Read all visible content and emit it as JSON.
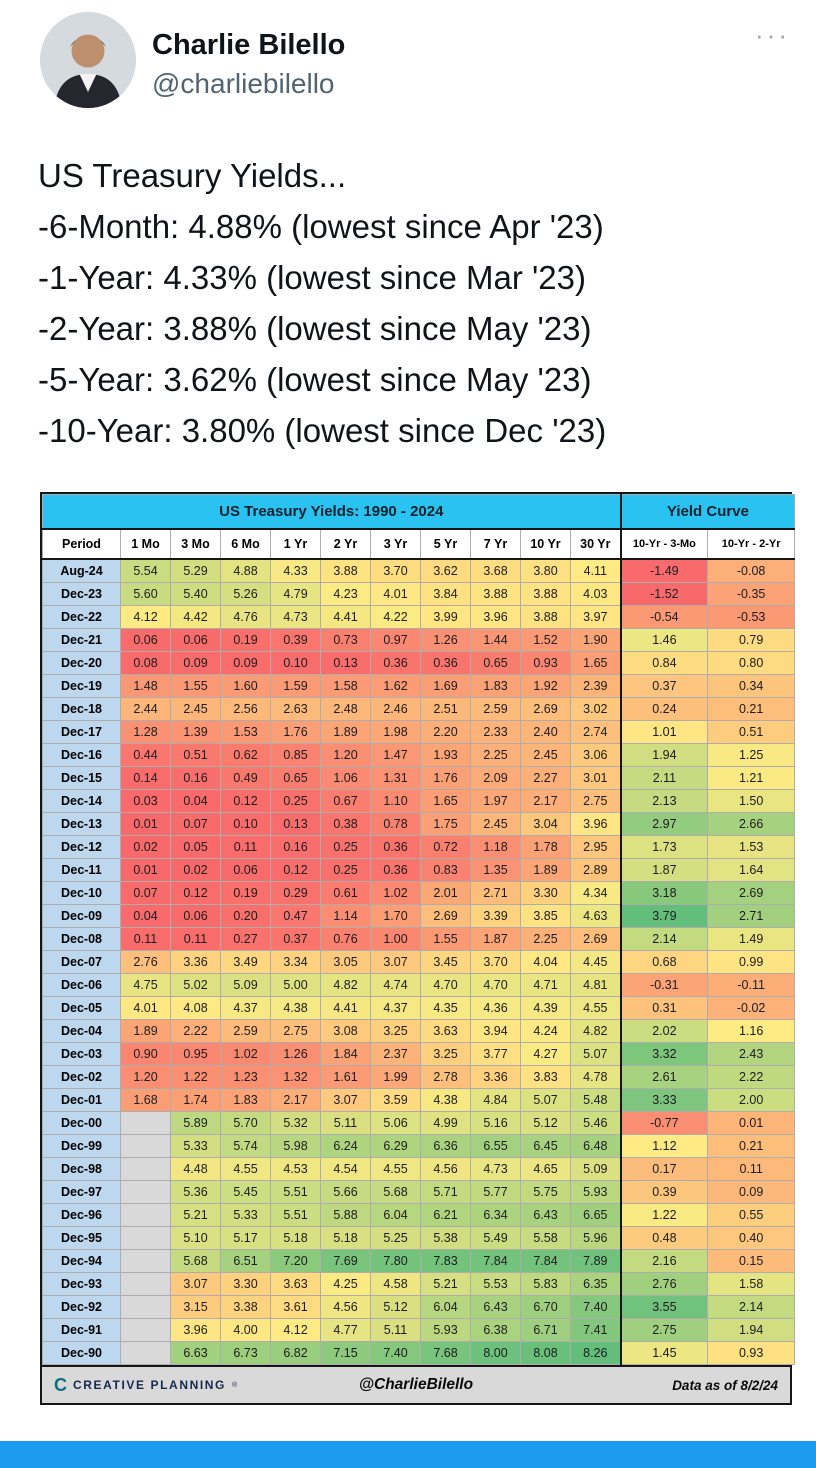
{
  "colors": {
    "title_bg": "#29c2f1",
    "period_bg": "#bdd7ee",
    "blank_bg": "#d9d9d9",
    "footer_bg": "#d9d9d9",
    "bottom_bar": "#1d9bf0"
  },
  "tweet": {
    "author": "Charlie Bilello",
    "handle": "@charliebilello",
    "more_glyph": "···",
    "body_lines": [
      "US Treasury Yields...",
      "-6-Month: 4.88% (lowest since Apr '23)",
      "-1-Year: 4.33% (lowest since Mar '23)",
      "-2-Year: 3.88% (lowest since May '23)",
      "-5-Year: 3.62% (lowest since May '23)",
      "-10-Year: 3.80% (lowest since Dec '23)"
    ]
  },
  "chart_data": {
    "type": "heatmap",
    "title": "US Treasury Yields: 1990 - 2024",
    "curve_title": "Yield Curve",
    "period_label": "Period",
    "columns": [
      "1 Mo",
      "3 Mo",
      "6 Mo",
      "1 Yr",
      "2 Yr",
      "3 Yr",
      "5 Yr",
      "7 Yr",
      "10 Yr",
      "30 Yr"
    ],
    "curve_columns": [
      "10-Yr - 3-Mo",
      "10-Yr - 2-Yr"
    ],
    "heatmap": {
      "low": "#f8696b",
      "mid": "#ffeb84",
      "high": "#63be7b",
      "yields_min": 0.01,
      "yields_mid": 4.14,
      "yields_max": 8.26,
      "curve_min": -1.52,
      "curve_mid": 1.14,
      "curve_max": 3.79
    },
    "rows": [
      {
        "period": "Aug-24",
        "cells": [
          "5.54",
          "5.29",
          "4.88",
          "4.33",
          "3.88",
          "3.70",
          "3.62",
          "3.68",
          "3.80",
          "4.11"
        ],
        "curve": [
          "-1.49",
          "-0.08"
        ]
      },
      {
        "period": "Dec-23",
        "cells": [
          "5.60",
          "5.40",
          "5.26",
          "4.79",
          "4.23",
          "4.01",
          "3.84",
          "3.88",
          "3.88",
          "4.03"
        ],
        "curve": [
          "-1.52",
          "-0.35"
        ]
      },
      {
        "period": "Dec-22",
        "cells": [
          "4.12",
          "4.42",
          "4.76",
          "4.73",
          "4.41",
          "4.22",
          "3.99",
          "3.96",
          "3.88",
          "3.97"
        ],
        "curve": [
          "-0.54",
          "-0.53"
        ]
      },
      {
        "period": "Dec-21",
        "cells": [
          "0.06",
          "0.06",
          "0.19",
          "0.39",
          "0.73",
          "0.97",
          "1.26",
          "1.44",
          "1.52",
          "1.90"
        ],
        "curve": [
          "1.46",
          "0.79"
        ]
      },
      {
        "period": "Dec-20",
        "cells": [
          "0.08",
          "0.09",
          "0.09",
          "0.10",
          "0.13",
          "0.36",
          "0.36",
          "0.65",
          "0.93",
          "1.65"
        ],
        "curve": [
          "0.84",
          "0.80"
        ]
      },
      {
        "period": "Dec-19",
        "cells": [
          "1.48",
          "1.55",
          "1.60",
          "1.59",
          "1.58",
          "1.62",
          "1.69",
          "1.83",
          "1.92",
          "2.39"
        ],
        "curve": [
          "0.37",
          "0.34"
        ]
      },
      {
        "period": "Dec-18",
        "cells": [
          "2.44",
          "2.45",
          "2.56",
          "2.63",
          "2.48",
          "2.46",
          "2.51",
          "2.59",
          "2.69",
          "3.02"
        ],
        "curve": [
          "0.24",
          "0.21"
        ]
      },
      {
        "period": "Dec-17",
        "cells": [
          "1.28",
          "1.39",
          "1.53",
          "1.76",
          "1.89",
          "1.98",
          "2.20",
          "2.33",
          "2.40",
          "2.74"
        ],
        "curve": [
          "1.01",
          "0.51"
        ]
      },
      {
        "period": "Dec-16",
        "cells": [
          "0.44",
          "0.51",
          "0.62",
          "0.85",
          "1.20",
          "1.47",
          "1.93",
          "2.25",
          "2.45",
          "3.06"
        ],
        "curve": [
          "1.94",
          "1.25"
        ]
      },
      {
        "period": "Dec-15",
        "cells": [
          "0.14",
          "0.16",
          "0.49",
          "0.65",
          "1.06",
          "1.31",
          "1.76",
          "2.09",
          "2.27",
          "3.01"
        ],
        "curve": [
          "2.11",
          "1.21"
        ]
      },
      {
        "period": "Dec-14",
        "cells": [
          "0.03",
          "0.04",
          "0.12",
          "0.25",
          "0.67",
          "1.10",
          "1.65",
          "1.97",
          "2.17",
          "2.75"
        ],
        "curve": [
          "2.13",
          "1.50"
        ]
      },
      {
        "period": "Dec-13",
        "cells": [
          "0.01",
          "0.07",
          "0.10",
          "0.13",
          "0.38",
          "0.78",
          "1.75",
          "2.45",
          "3.04",
          "3.96"
        ],
        "curve": [
          "2.97",
          "2.66"
        ]
      },
      {
        "period": "Dec-12",
        "cells": [
          "0.02",
          "0.05",
          "0.11",
          "0.16",
          "0.25",
          "0.36",
          "0.72",
          "1.18",
          "1.78",
          "2.95"
        ],
        "curve": [
          "1.73",
          "1.53"
        ]
      },
      {
        "period": "Dec-11",
        "cells": [
          "0.01",
          "0.02",
          "0.06",
          "0.12",
          "0.25",
          "0.36",
          "0.83",
          "1.35",
          "1.89",
          "2.89"
        ],
        "curve": [
          "1.87",
          "1.64"
        ]
      },
      {
        "period": "Dec-10",
        "cells": [
          "0.07",
          "0.12",
          "0.19",
          "0.29",
          "0.61",
          "1.02",
          "2.01",
          "2.71",
          "3.30",
          "4.34"
        ],
        "curve": [
          "3.18",
          "2.69"
        ]
      },
      {
        "period": "Dec-09",
        "cells": [
          "0.04",
          "0.06",
          "0.20",
          "0.47",
          "1.14",
          "1.70",
          "2.69",
          "3.39",
          "3.85",
          "4.63"
        ],
        "curve": [
          "3.79",
          "2.71"
        ]
      },
      {
        "period": "Dec-08",
        "cells": [
          "0.11",
          "0.11",
          "0.27",
          "0.37",
          "0.76",
          "1.00",
          "1.55",
          "1.87",
          "2.25",
          "2.69"
        ],
        "curve": [
          "2.14",
          "1.49"
        ]
      },
      {
        "period": "Dec-07",
        "cells": [
          "2.76",
          "3.36",
          "3.49",
          "3.34",
          "3.05",
          "3.07",
          "3.45",
          "3.70",
          "4.04",
          "4.45"
        ],
        "curve": [
          "0.68",
          "0.99"
        ]
      },
      {
        "period": "Dec-06",
        "cells": [
          "4.75",
          "5.02",
          "5.09",
          "5.00",
          "4.82",
          "4.74",
          "4.70",
          "4.70",
          "4.71",
          "4.81"
        ],
        "curve": [
          "-0.31",
          "-0.11"
        ]
      },
      {
        "period": "Dec-05",
        "cells": [
          "4.01",
          "4.08",
          "4.37",
          "4.38",
          "4.41",
          "4.37",
          "4.35",
          "4.36",
          "4.39",
          "4.55"
        ],
        "curve": [
          "0.31",
          "-0.02"
        ]
      },
      {
        "period": "Dec-04",
        "cells": [
          "1.89",
          "2.22",
          "2.59",
          "2.75",
          "3.08",
          "3.25",
          "3.63",
          "3.94",
          "4.24",
          "4.82"
        ],
        "curve": [
          "2.02",
          "1.16"
        ]
      },
      {
        "period": "Dec-03",
        "cells": [
          "0.90",
          "0.95",
          "1.02",
          "1.26",
          "1.84",
          "2.37",
          "3.25",
          "3.77",
          "4.27",
          "5.07"
        ],
        "curve": [
          "3.32",
          "2.43"
        ]
      },
      {
        "period": "Dec-02",
        "cells": [
          "1.20",
          "1.22",
          "1.23",
          "1.32",
          "1.61",
          "1.99",
          "2.78",
          "3.36",
          "3.83",
          "4.78"
        ],
        "curve": [
          "2.61",
          "2.22"
        ]
      },
      {
        "period": "Dec-01",
        "cells": [
          "1.68",
          "1.74",
          "1.83",
          "2.17",
          "3.07",
          "3.59",
          "4.38",
          "4.84",
          "5.07",
          "5.48"
        ],
        "curve": [
          "3.33",
          "2.00"
        ]
      },
      {
        "period": "Dec-00",
        "cells": [
          "",
          "5.89",
          "5.70",
          "5.32",
          "5.11",
          "5.06",
          "4.99",
          "5.16",
          "5.12",
          "5.46"
        ],
        "curve": [
          "-0.77",
          "0.01"
        ]
      },
      {
        "period": "Dec-99",
        "cells": [
          "",
          "5.33",
          "5.74",
          "5.98",
          "6.24",
          "6.29",
          "6.36",
          "6.55",
          "6.45",
          "6.48"
        ],
        "curve": [
          "1.12",
          "0.21"
        ]
      },
      {
        "period": "Dec-98",
        "cells": [
          "",
          "4.48",
          "4.55",
          "4.53",
          "4.54",
          "4.55",
          "4.56",
          "4.73",
          "4.65",
          "5.09"
        ],
        "curve": [
          "0.17",
          "0.11"
        ]
      },
      {
        "period": "Dec-97",
        "cells": [
          "",
          "5.36",
          "5.45",
          "5.51",
          "5.66",
          "5.68",
          "5.71",
          "5.77",
          "5.75",
          "5.93"
        ],
        "curve": [
          "0.39",
          "0.09"
        ]
      },
      {
        "period": "Dec-96",
        "cells": [
          "",
          "5.21",
          "5.33",
          "5.51",
          "5.88",
          "6.04",
          "6.21",
          "6.34",
          "6.43",
          "6.65"
        ],
        "curve": [
          "1.22",
          "0.55"
        ]
      },
      {
        "period": "Dec-95",
        "cells": [
          "",
          "5.10",
          "5.17",
          "5.18",
          "5.18",
          "5.25",
          "5.38",
          "5.49",
          "5.58",
          "5.96"
        ],
        "curve": [
          "0.48",
          "0.40"
        ]
      },
      {
        "period": "Dec-94",
        "cells": [
          "",
          "5.68",
          "6.51",
          "7.20",
          "7.69",
          "7.80",
          "7.83",
          "7.84",
          "7.84",
          "7.89"
        ],
        "curve": [
          "2.16",
          "0.15"
        ]
      },
      {
        "period": "Dec-93",
        "cells": [
          "",
          "3.07",
          "3.30",
          "3.63",
          "4.25",
          "4.58",
          "5.21",
          "5.53",
          "5.83",
          "6.35"
        ],
        "curve": [
          "2.76",
          "1.58"
        ]
      },
      {
        "period": "Dec-92",
        "cells": [
          "",
          "3.15",
          "3.38",
          "3.61",
          "4.56",
          "5.12",
          "6.04",
          "6.43",
          "6.70",
          "7.40"
        ],
        "curve": [
          "3.55",
          "2.14"
        ]
      },
      {
        "period": "Dec-91",
        "cells": [
          "",
          "3.96",
          "4.00",
          "4.12",
          "4.77",
          "5.11",
          "5.93",
          "6.38",
          "6.71",
          "7.41"
        ],
        "curve": [
          "2.75",
          "1.94"
        ]
      },
      {
        "period": "Dec-90",
        "cells": [
          "",
          "6.63",
          "6.73",
          "6.82",
          "7.15",
          "7.40",
          "7.68",
          "8.00",
          "8.08",
          "8.26"
        ],
        "curve": [
          "1.45",
          "0.93"
        ]
      }
    ],
    "footer": {
      "brand": "CREATIVE PLANNING",
      "reg": "®",
      "handle": "@CharlieBilello",
      "note": "Data as of 8/2/24"
    }
  }
}
